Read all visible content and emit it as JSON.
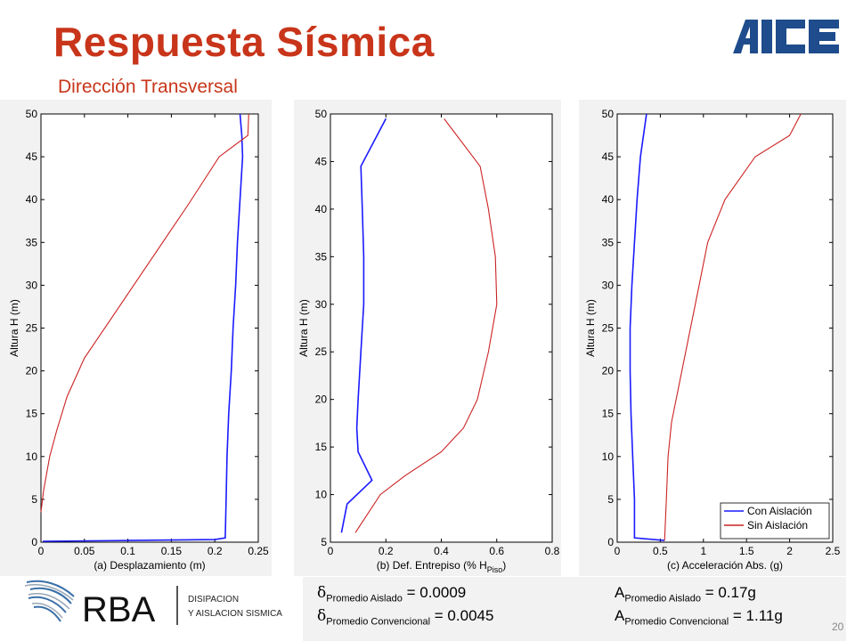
{
  "slide": {
    "title": "Respuesta Sísmica",
    "subtitle": "Dirección Transversal",
    "page_number": "20",
    "accent_color": "#c8351a"
  },
  "logos": {
    "top_right": "AICE",
    "bottom_left": {
      "mark": "RBA",
      "line1": "DISIPACION",
      "line2": "Y AISLACION SISMICA"
    }
  },
  "formulas": {
    "left": [
      {
        "symbol": "δ",
        "sub": "Promedio Aislado",
        "value": "= 0.0009"
      },
      {
        "symbol": "δ",
        "sub": "Promedio Convencional",
        "value": "= 0.0045"
      }
    ],
    "right": [
      {
        "symbol": "A",
        "sub": "Promedio Aislado",
        "value": "= 0.17g"
      },
      {
        "symbol": "A",
        "sub": "Promedio Convencional",
        "value": "= 1.11g"
      }
    ]
  },
  "colors": {
    "con": "#1a1aff",
    "sin": "#cc2222"
  },
  "chart_data": [
    {
      "type": "line",
      "xlabel": "(a) Desplazamiento (m)",
      "ylabel": "Altura H (m)",
      "xlim": [
        0,
        0.25
      ],
      "ylim": [
        0,
        50
      ],
      "xticks": [
        "0",
        "0.05",
        "0.1",
        "0.15",
        "0.2",
        "0.25"
      ],
      "xtick_values": [
        0,
        0.05,
        0.1,
        0.15,
        0.2,
        0.25
      ],
      "yticks": [
        "0",
        "5",
        "10",
        "15",
        "20",
        "25",
        "30",
        "35",
        "40",
        "45",
        "50"
      ],
      "ytick_values": [
        0,
        5,
        10,
        15,
        20,
        25,
        30,
        35,
        40,
        45,
        50
      ],
      "series": [
        {
          "name": "Con Aislación",
          "color": "#1a1aff",
          "points": [
            [
              0.002,
              0.1
            ],
            [
              0.1,
              0.2
            ],
            [
              0.2,
              0.3
            ],
            [
              0.212,
              0.5
            ],
            [
              0.213,
              5
            ],
            [
              0.214,
              10
            ],
            [
              0.216,
              15
            ],
            [
              0.219,
              20
            ],
            [
              0.221,
              25
            ],
            [
              0.224,
              30
            ],
            [
              0.226,
              35
            ],
            [
              0.229,
              40
            ],
            [
              0.232,
              45
            ],
            [
              0.231,
              47.5
            ],
            [
              0.229,
              50
            ]
          ]
        },
        {
          "name": "Sin Aislación",
          "color": "#cc2222",
          "points": [
            [
              0,
              3.5
            ],
            [
              0.003,
              6
            ],
            [
              0.01,
              10
            ],
            [
              0.018,
              13
            ],
            [
              0.03,
              17
            ],
            [
              0.05,
              21.5
            ],
            [
              0.08,
              26
            ],
            [
              0.11,
              30.5
            ],
            [
              0.14,
              35
            ],
            [
              0.17,
              39.5
            ],
            [
              0.205,
              45
            ],
            [
              0.238,
              47.5
            ],
            [
              0.239,
              50
            ]
          ]
        }
      ]
    },
    {
      "type": "line",
      "xlabel": "(b) Def. Entrepiso (% H",
      "xlabel_sub": "Piso",
      "xlabel_end": ")",
      "ylabel": "Altura H (m)",
      "xlim": [
        0,
        0.8
      ],
      "ylim": [
        5,
        50
      ],
      "xticks": [
        "0",
        "0.2",
        "0.4",
        "0.6",
        "0.8"
      ],
      "xtick_values": [
        0,
        0.2,
        0.4,
        0.6,
        0.8
      ],
      "yticks": [
        "5",
        "10",
        "15",
        "20",
        "25",
        "30",
        "35",
        "40",
        "45",
        "50"
      ],
      "ytick_values": [
        5,
        10,
        15,
        20,
        25,
        30,
        35,
        40,
        45,
        50
      ],
      "series": [
        {
          "name": "Con Aislación",
          "color": "#1a1aff",
          "points": [
            [
              0.04,
              6
            ],
            [
              0.06,
              9
            ],
            [
              0.15,
              11.5
            ],
            [
              0.1,
              14.5
            ],
            [
              0.095,
              17
            ],
            [
              0.1,
              20
            ],
            [
              0.11,
              25
            ],
            [
              0.12,
              30
            ],
            [
              0.12,
              35
            ],
            [
              0.115,
              40
            ],
            [
              0.11,
              44.5
            ],
            [
              0.2,
              49.5
            ]
          ]
        },
        {
          "name": "Sin Aislación",
          "color": "#cc2222",
          "points": [
            [
              0.09,
              6
            ],
            [
              0.18,
              10
            ],
            [
              0.27,
              12
            ],
            [
              0.4,
              14.5
            ],
            [
              0.48,
              17
            ],
            [
              0.53,
              20
            ],
            [
              0.57,
              25
            ],
            [
              0.6,
              30
            ],
            [
              0.595,
              35
            ],
            [
              0.57,
              40
            ],
            [
              0.54,
              44.5
            ],
            [
              0.41,
              49.5
            ]
          ]
        }
      ]
    },
    {
      "type": "line",
      "xlabel": "(c) Acceleración Abs. (g)",
      "ylabel": "Altura H (m)",
      "xlim": [
        0,
        2.5
      ],
      "ylim": [
        0,
        50
      ],
      "xticks": [
        "0",
        "0.5",
        "1",
        "1.5",
        "2",
        "2.5"
      ],
      "xtick_values": [
        0,
        0.5,
        1,
        1.5,
        2,
        2.5
      ],
      "yticks": [
        "0",
        "5",
        "10",
        "15",
        "20",
        "25",
        "30",
        "35",
        "40",
        "45",
        "50"
      ],
      "ytick_values": [
        0,
        5,
        10,
        15,
        20,
        25,
        30,
        35,
        40,
        45,
        50
      ],
      "legend": "bottom-right",
      "series": [
        {
          "name": "Con Aislación",
          "color": "#1a1aff",
          "points": [
            [
              0.55,
              0.2
            ],
            [
              0.2,
              0.5
            ],
            [
              0.2,
              5
            ],
            [
              0.18,
              10
            ],
            [
              0.16,
              15
            ],
            [
              0.15,
              20
            ],
            [
              0.15,
              25
            ],
            [
              0.17,
              30
            ],
            [
              0.2,
              35
            ],
            [
              0.23,
              40
            ],
            [
              0.27,
              45
            ],
            [
              0.34,
              50
            ]
          ]
        },
        {
          "name": "Sin Aislación",
          "color": "#cc2222",
          "points": [
            [
              0.55,
              0.2
            ],
            [
              0.57,
              5
            ],
            [
              0.59,
              10
            ],
            [
              0.63,
              14
            ],
            [
              0.75,
              20
            ],
            [
              0.85,
              25
            ],
            [
              0.95,
              30
            ],
            [
              1.05,
              35
            ],
            [
              1.25,
              40
            ],
            [
              1.6,
              45
            ],
            [
              2.0,
              47.5
            ],
            [
              2.13,
              50
            ]
          ]
        }
      ]
    }
  ]
}
